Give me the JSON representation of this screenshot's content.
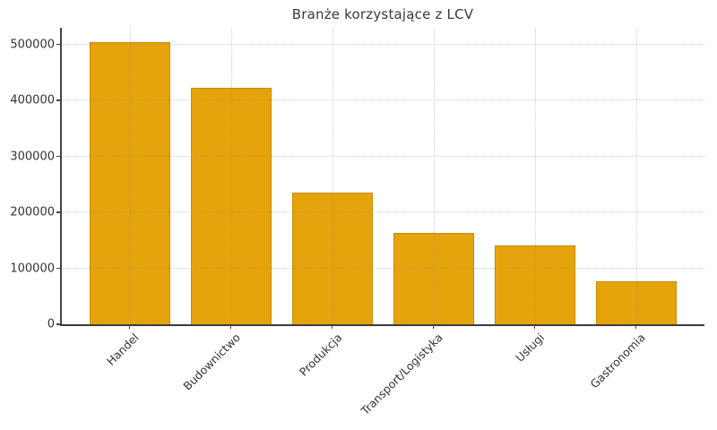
{
  "chart_data": {
    "type": "bar",
    "title": "Branże korzystające z LCV",
    "categories": [
      "Handel",
      "Budownictwo",
      "Produkcja",
      "Transport/Logistyka",
      "Usługi",
      "Gastronomia"
    ],
    "values": [
      505000,
      422000,
      235000,
      164000,
      141000,
      77000
    ],
    "xlabel": "",
    "ylabel": "",
    "ylim": [
      0,
      530000
    ],
    "yticks": [
      0,
      100000,
      200000,
      300000,
      400000,
      500000
    ],
    "ytick_labels": [
      "0",
      "100000",
      "200000",
      "300000",
      "400000",
      "500000"
    ],
    "xtick_rotation_deg": 45,
    "grid": true,
    "grid_style": "dotted",
    "legend": null,
    "colors": {
      "bar_fill": "#E5A40B",
      "bar_edge": "#AF7600",
      "grid": "#d6d6d6",
      "axis": "#454545",
      "text": "#333333",
      "title": "#3a3a3a",
      "background": "#ffffff"
    }
  }
}
